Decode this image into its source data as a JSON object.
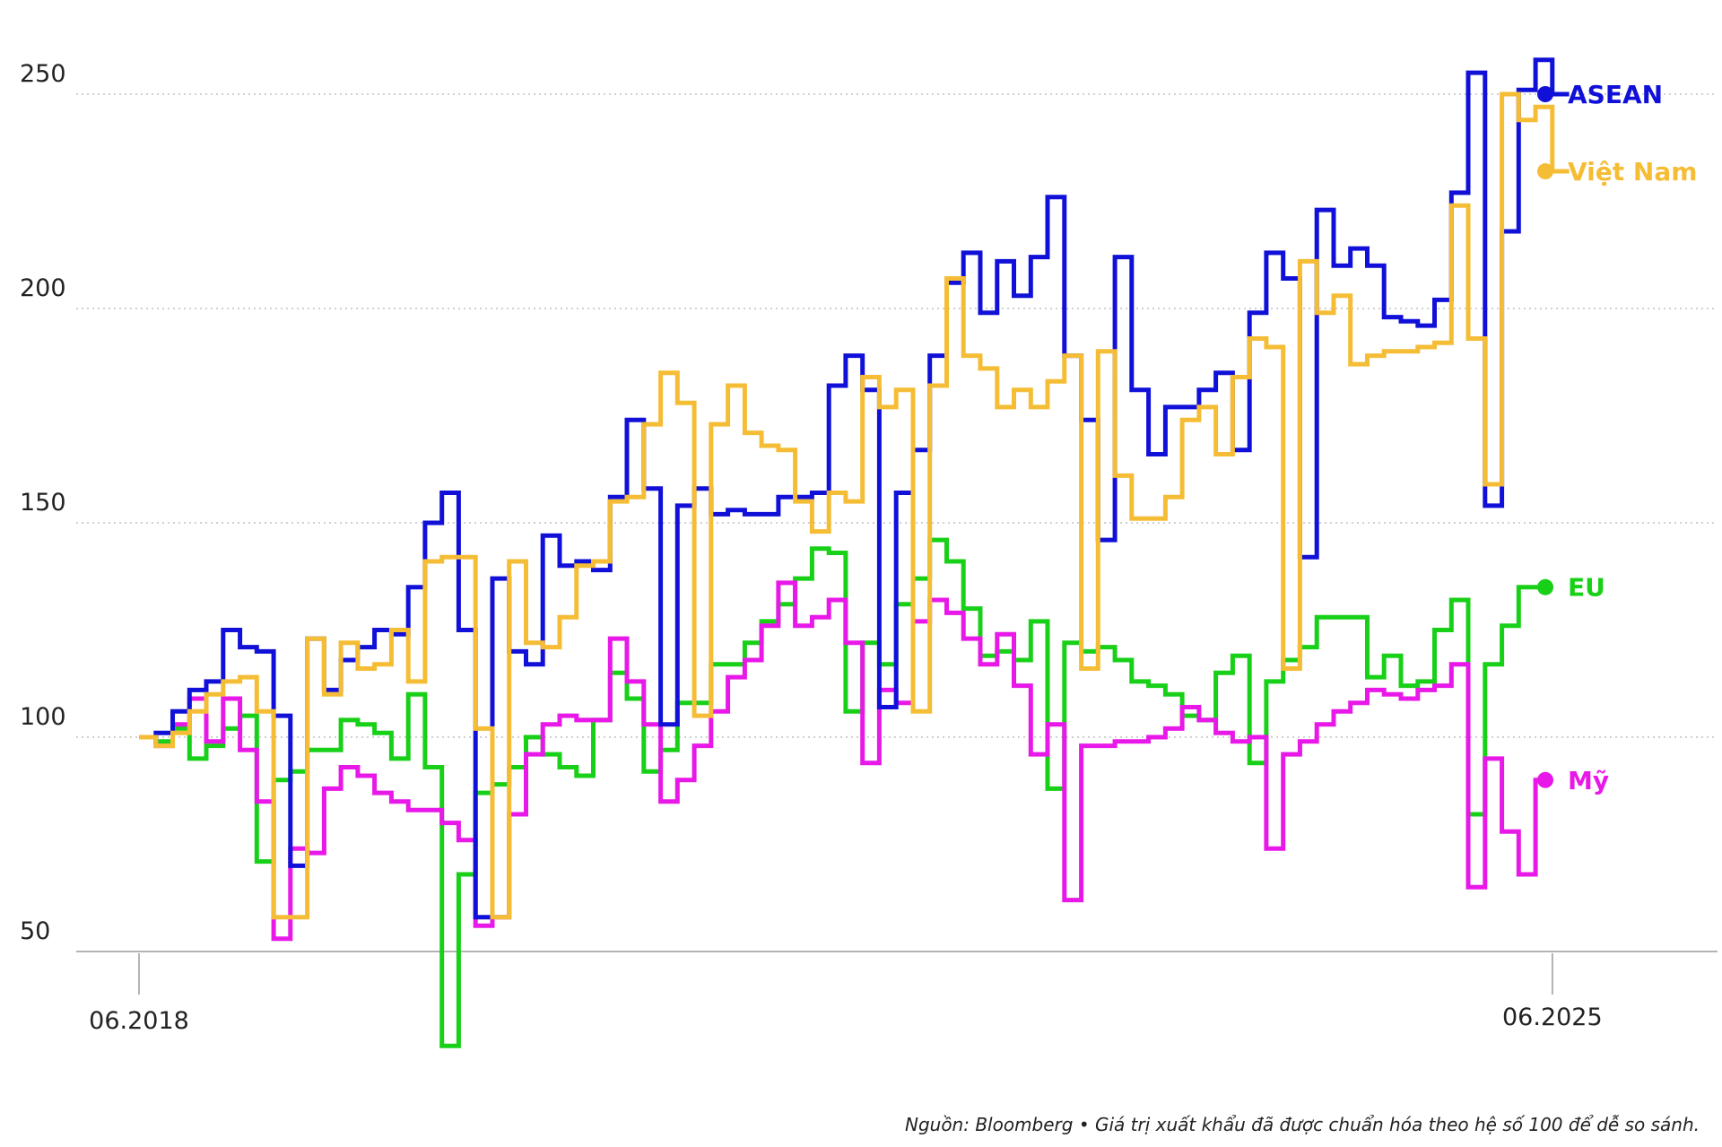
{
  "chart_data": {
    "type": "line",
    "subtype": "step",
    "ylim": [
      50,
      250
    ],
    "yticks": [
      50,
      100,
      150,
      200,
      250
    ],
    "grid": "horizontal dotted",
    "x_tick_labels": [
      {
        "x": 0,
        "label": "06.2018"
      },
      {
        "x": 84,
        "label": "06.2025"
      }
    ],
    "colors": {
      "ASEAN": "#1010d8",
      "Việt Nam": "#f5bd35",
      "EU": "#18d018",
      "Mỹ": "#e818e8"
    },
    "series": [
      {
        "name": "ASEAN",
        "values": [
          100,
          101,
          106,
          111,
          113,
          125,
          121,
          120,
          105,
          70,
          123,
          111,
          118,
          121,
          125,
          124,
          135,
          150,
          157,
          125,
          58,
          137,
          120,
          117,
          147,
          140,
          141,
          139,
          156,
          174,
          158,
          103,
          154,
          158,
          152,
          153,
          152,
          152,
          156,
          156,
          157,
          182,
          189,
          181,
          107,
          157,
          167,
          189,
          206,
          213,
          199,
          211,
          203,
          212,
          226,
          189,
          174,
          146,
          212,
          181,
          166,
          177,
          177,
          181,
          185,
          167,
          199,
          213,
          207,
          142,
          223,
          210,
          214,
          210,
          198,
          197,
          196,
          202,
          227,
          255,
          154,
          218,
          251,
          258,
          250,
          250
        ],
        "label": "ASEAN"
      },
      {
        "name": "Việt Nam",
        "values": [
          100,
          98,
          101,
          106,
          110,
          113,
          114,
          106,
          58,
          58,
          123,
          110,
          122,
          116,
          117,
          125,
          113,
          141,
          142,
          142,
          102,
          58,
          141,
          122,
          121,
          128,
          140,
          141,
          155,
          156,
          173,
          185,
          178,
          105,
          173,
          182,
          171,
          168,
          167,
          155,
          148,
          157,
          155,
          184,
          177,
          181,
          106,
          182,
          207,
          189,
          186,
          177,
          181,
          177,
          183,
          189,
          116,
          190,
          161,
          151,
          151,
          156,
          174,
          177,
          166,
          184,
          193,
          191,
          116,
          211,
          199,
          203,
          187,
          189,
          190,
          190,
          191,
          192,
          224,
          193,
          159,
          250,
          244,
          247,
          232,
          232
        ],
        "label": "Việt Nam"
      },
      {
        "name": "EU",
        "values": [
          100,
          99,
          102,
          95,
          98,
          102,
          105,
          71,
          90,
          92,
          97,
          97,
          104,
          103,
          101,
          95,
          110,
          93,
          28,
          68,
          87,
          89,
          93,
          100,
          96,
          93,
          91,
          104,
          115,
          109,
          92,
          97,
          108,
          108,
          117,
          117,
          122,
          127,
          131,
          137,
          144,
          143,
          106,
          122,
          117,
          131,
          137,
          146,
          141,
          130,
          119,
          120,
          118,
          127,
          88,
          122,
          120,
          121,
          118,
          113,
          112,
          110,
          105,
          104,
          115,
          119,
          94,
          113,
          118,
          121,
          128,
          128,
          128,
          114,
          119,
          112,
          113,
          125,
          132,
          82,
          117,
          126,
          135,
          135
        ],
        "label": "EU"
      },
      {
        "name": "Mỹ",
        "values": [
          100,
          98,
          103,
          109,
          99,
          109,
          97,
          85,
          53,
          74,
          73,
          88,
          93,
          91,
          87,
          85,
          83,
          83,
          80,
          76,
          56,
          58,
          82,
          96,
          103,
          105,
          104,
          104,
          123,
          113,
          103,
          85,
          90,
          98,
          106,
          114,
          118,
          126,
          136,
          126,
          128,
          132,
          122,
          94,
          111,
          108,
          127,
          132,
          129,
          123,
          117,
          124,
          112,
          96,
          103,
          62,
          98,
          98,
          99,
          99,
          100,
          102,
          107,
          104,
          101,
          99,
          100,
          74,
          96,
          99,
          103,
          106,
          108,
          111,
          110,
          109,
          111,
          112,
          117,
          65,
          95,
          78,
          68,
          90,
          90
        ],
        "label": "Mỹ"
      }
    ],
    "source_note": "Nguồn: Bloomberg • Giá trị xuất khẩu đã được chuẩn hóa theo hệ số 100 để dễ so sánh."
  }
}
